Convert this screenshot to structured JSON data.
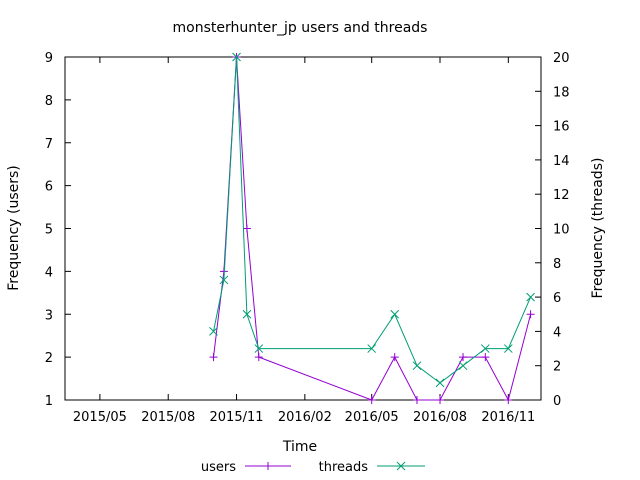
{
  "chart_data": {
    "type": "line",
    "title": "monsterhunter_jp users and threads",
    "xlabel": "Time",
    "ylabel_left": "Frequency (users)",
    "ylabel_right": "Frequency (threads)",
    "x_range": [
      "2015-03-15",
      "2016-12-15"
    ],
    "x_ticks": [
      {
        "date": "2015-05-01",
        "label": "2015/05"
      },
      {
        "date": "2015-08-01",
        "label": "2015/08"
      },
      {
        "date": "2015-11-01",
        "label": "2015/11"
      },
      {
        "date": "2016-02-01",
        "label": "2016/02"
      },
      {
        "date": "2016-05-01",
        "label": "2016/05"
      },
      {
        "date": "2016-08-01",
        "label": "2016/08"
      },
      {
        "date": "2016-11-01",
        "label": "2016/11"
      }
    ],
    "ylim_left": [
      1,
      9
    ],
    "yticks_left": [
      1,
      2,
      3,
      4,
      5,
      6,
      7,
      8,
      9
    ],
    "ylim_right": [
      0,
      20
    ],
    "yticks_right": [
      0,
      2,
      4,
      6,
      8,
      10,
      12,
      14,
      16,
      18,
      20
    ],
    "grid": false,
    "legend_position": "bottom",
    "series": [
      {
        "name": "users",
        "axis": "left",
        "color": "#9400d3",
        "marker": "plus",
        "points": [
          [
            "2015-10-01",
            2
          ],
          [
            "2015-10-15",
            4
          ],
          [
            "2015-11-01",
            9
          ],
          [
            "2015-11-15",
            5
          ],
          [
            "2015-12-01",
            2
          ],
          [
            "2016-05-01",
            1
          ],
          [
            "2016-06-01",
            2
          ],
          [
            "2016-07-01",
            1
          ],
          [
            "2016-08-01",
            1
          ],
          [
            "2016-09-01",
            2
          ],
          [
            "2016-10-01",
            2
          ],
          [
            "2016-11-01",
            1
          ],
          [
            "2016-12-01",
            3
          ]
        ]
      },
      {
        "name": "threads",
        "axis": "right",
        "color": "#009e73",
        "marker": "cross",
        "points": [
          [
            "2015-10-01",
            4
          ],
          [
            "2015-10-15",
            7
          ],
          [
            "2015-11-01",
            20
          ],
          [
            "2015-11-15",
            5
          ],
          [
            "2015-12-01",
            3
          ],
          [
            "2016-05-01",
            3
          ],
          [
            "2016-06-01",
            5
          ],
          [
            "2016-07-01",
            2
          ],
          [
            "2016-08-01",
            1
          ],
          [
            "2016-09-01",
            2
          ],
          [
            "2016-10-01",
            3
          ],
          [
            "2016-11-01",
            3
          ],
          [
            "2016-12-01",
            6
          ]
        ]
      }
    ]
  }
}
